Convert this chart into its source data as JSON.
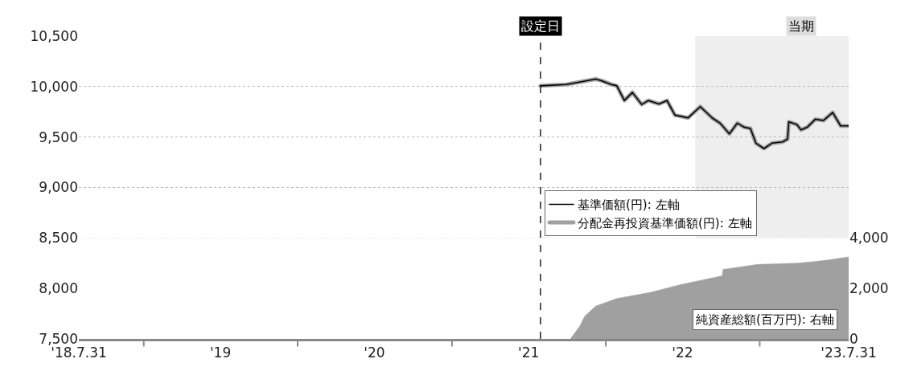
{
  "chart_data": {
    "type": "line",
    "xlim": [
      "2018-07-31",
      "2023-07-31"
    ],
    "xticks": [
      {
        "value": "2018-07-31",
        "label": "'18.7.31"
      },
      {
        "value": "2019-01-01",
        "label": null
      },
      {
        "value": "2019-07-02",
        "label": "'19"
      },
      {
        "value": "2020-01-01",
        "label": null
      },
      {
        "value": "2020-07-01",
        "label": "'20"
      },
      {
        "value": "2021-01-01",
        "label": null
      },
      {
        "value": "2021-07-02",
        "label": "'21"
      },
      {
        "value": "2022-01-01",
        "label": null
      },
      {
        "value": "2022-07-02",
        "label": "'22"
      },
      {
        "value": "2023-01-01",
        "label": null
      },
      {
        "value": "2023-07-31",
        "label": "'23.7.31"
      }
    ],
    "ylim": [
      7500,
      10500
    ],
    "yticks": [
      {
        "value": 7500,
        "label": "7,500"
      },
      {
        "value": 8000,
        "label": "8,000"
      },
      {
        "value": 8500,
        "label": "8,500"
      },
      {
        "value": 9000,
        "label": "9,000"
      },
      {
        "value": 9500,
        "label": "9,500"
      },
      {
        "value": 10000,
        "label": "10,000"
      },
      {
        "value": 10500,
        "label": "10,500"
      }
    ],
    "y2lim": [
      0,
      4000
    ],
    "y2ticks": [
      0,
      {
        "value": 2000,
        "label": "2,000"
      },
      {
        "value": 4000,
        "label": "4,000"
      }
    ],
    "grid": "y",
    "legend": "right",
    "series": [
      {
        "name": "分配金再投資基準価額(円): 左軸",
        "color": "#a0a0a0",
        "x": [
          "2021-07-30",
          "2021-09-29",
          "2021-12-08",
          "2021-12-20",
          "2022-01-14",
          "2022-01-27",
          "2022-02-14",
          "2022-03-05",
          "2022-03-27",
          "2022-04-12",
          "2022-05-07",
          "2022-05-26",
          "2022-06-14",
          "2022-07-15",
          "2022-08-13",
          "2022-09-10",
          "2022-09-29",
          "2022-10-21",
          "2022-11-09",
          "2022-11-25",
          "2022-12-10",
          "2022-12-23",
          "2023-01-11",
          "2023-01-30",
          "2023-02-24",
          "2023-03-08",
          "2023-03-11",
          "2023-03-30",
          "2023-04-09",
          "2023-04-24",
          "2023-05-13",
          "2023-06-01",
          "2023-06-23",
          "2023-07-12",
          "2023-07-31"
        ],
        "values": [
          10008,
          10021,
          10074,
          10061,
          10021,
          10008,
          9862,
          9942,
          9823,
          9862,
          9828,
          9862,
          9717,
          9690,
          9802,
          9690,
          9638,
          9532,
          9638,
          9598,
          9585,
          9439,
          9386,
          9439,
          9452,
          9479,
          9651,
          9624,
          9571,
          9598,
          9677,
          9664,
          9743,
          9611,
          9611
        ]
      },
      {
        "name": "基準価額(円): 左軸",
        "color": "#000000",
        "x": [
          "2021-07-30",
          "2021-09-29",
          "2021-12-08",
          "2021-12-20",
          "2022-01-14",
          "2022-01-27",
          "2022-02-14",
          "2022-03-05",
          "2022-03-27",
          "2022-04-12",
          "2022-05-07",
          "2022-05-26",
          "2022-06-14",
          "2022-07-15",
          "2022-08-13",
          "2022-09-10",
          "2022-09-29",
          "2022-10-21",
          "2022-11-09",
          "2022-11-25",
          "2022-12-10",
          "2022-12-23",
          "2023-01-11",
          "2023-01-30",
          "2023-02-24",
          "2023-03-08",
          "2023-03-11",
          "2023-03-30",
          "2023-04-09",
          "2023-04-24",
          "2023-05-13",
          "2023-06-01",
          "2023-06-23",
          "2023-07-12",
          "2023-07-31"
        ],
        "values": [
          10008,
          10021,
          10074,
          10061,
          10021,
          10008,
          9862,
          9942,
          9823,
          9862,
          9828,
          9862,
          9717,
          9690,
          9802,
          9690,
          9638,
          9532,
          9638,
          9598,
          9585,
          9439,
          9386,
          9439,
          9452,
          9479,
          9651,
          9624,
          9571,
          9598,
          9677,
          9664,
          9743,
          9611,
          9611
        ]
      },
      {
        "name": "純資産総額(百万円): 右軸",
        "color": "#a0a0a0",
        "type": "area",
        "axis": "y2",
        "x": [
          "2021-10-09",
          "2021-10-31",
          "2021-11-12",
          "2021-12-08",
          "2022-01-27",
          "2022-04-18",
          "2022-06-27",
          "2022-08-22",
          "2022-10-04",
          "2022-10-06",
          "2022-12-26",
          "2023-03-30",
          "2023-06-01",
          "2023-07-31"
        ],
        "values": [
          0,
          500,
          900,
          1300,
          1600,
          1850,
          2150,
          2350,
          2500,
          2750,
          2950,
          3000,
          3100,
          3250
        ]
      }
    ],
    "ref_lines": [
      {
        "axis": "x",
        "value": "2021-07-30",
        "label": "設定日",
        "color": "#000000",
        "line_style": "dashed"
      }
    ],
    "bands": [
      {
        "axis": "x",
        "from": "2022-08-01",
        "to": "2023-07-31",
        "label": "当期",
        "color": "#eeeeee"
      }
    ]
  }
}
